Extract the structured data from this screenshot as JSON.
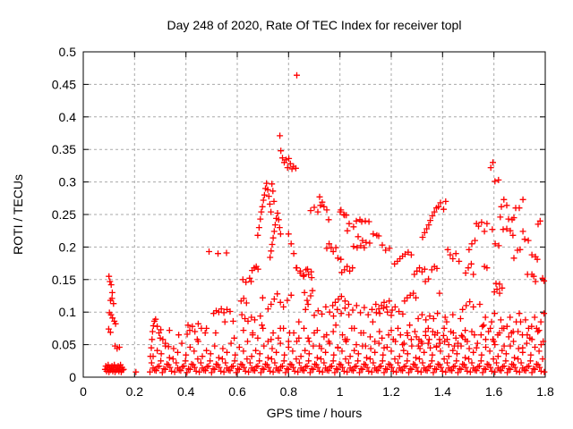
{
  "chart_data": {
    "type": "scatter",
    "title": "Day 248 of 2020, Rate Of TEC Index for receiver topl",
    "xlabel": "GPS time / hours",
    "ylabel": "ROTI / TECUs",
    "xlim": [
      0,
      1.8
    ],
    "ylim": [
      0,
      0.5
    ],
    "grid": true,
    "legend": "none",
    "xtick_values": [
      0,
      0.2,
      0.4,
      0.6,
      0.8,
      1.0,
      1.2,
      1.4,
      1.6,
      1.8
    ],
    "xtick_labels": [
      "0",
      "0.2",
      "0.4",
      "0.6",
      "0.8",
      "1",
      "1.2",
      "1.4",
      "1.6",
      "1.8"
    ],
    "ytick_values": [
      0,
      0.05,
      0.1,
      0.15,
      0.2,
      0.25,
      0.3,
      0.35,
      0.4,
      0.45,
      0.5
    ],
    "ytick_labels": [
      "0",
      "0.05",
      "0.1",
      "0.15",
      "0.2",
      "0.25",
      "0.3",
      "0.35",
      "0.4",
      "0.45",
      "0.5"
    ],
    "colors": {
      "marker": "#ff0000",
      "grid": "#aaaaaa",
      "axis": "#000000",
      "background": "#ffffff"
    },
    "marker": {
      "shape": "plus",
      "size": 7
    },
    "points": [
      [
        0.1,
        0.155
      ],
      [
        0.104,
        0.147
      ],
      [
        0.109,
        0.142
      ],
      [
        0.113,
        0.13
      ],
      [
        0.106,
        0.118
      ],
      [
        0.112,
        0.121
      ],
      [
        0.118,
        0.113
      ],
      [
        0.102,
        0.099
      ],
      [
        0.108,
        0.096
      ],
      [
        0.114,
        0.091
      ],
      [
        0.121,
        0.086
      ],
      [
        0.126,
        0.082
      ],
      [
        0.099,
        0.074
      ],
      [
        0.106,
        0.069
      ],
      [
        0.124,
        0.048
      ],
      [
        0.132,
        0.044
      ],
      [
        0.141,
        0.046
      ],
      [
        0.205,
        0.008
      ],
      [
        0.262,
        0.032
      ],
      [
        0.265,
        0.045
      ],
      [
        0.268,
        0.058
      ],
      [
        0.27,
        0.07
      ],
      [
        0.273,
        0.079
      ],
      [
        0.277,
        0.086
      ],
      [
        0.282,
        0.089
      ],
      [
        0.288,
        0.078
      ],
      [
        0.295,
        0.068
      ],
      [
        0.302,
        0.073
      ],
      [
        0.31,
        0.058
      ],
      [
        0.32,
        0.052
      ],
      [
        0.332,
        0.047
      ],
      [
        0.405,
        0.066
      ],
      [
        0.415,
        0.072
      ],
      [
        0.425,
        0.078
      ],
      [
        0.435,
        0.07
      ],
      [
        0.448,
        0.082
      ],
      [
        0.46,
        0.075
      ],
      [
        0.475,
        0.068
      ],
      [
        0.49,
        0.193
      ],
      [
        0.525,
        0.19
      ],
      [
        0.558,
        0.191
      ],
      [
        0.508,
        0.098
      ],
      [
        0.518,
        0.102
      ],
      [
        0.528,
        0.1
      ],
      [
        0.538,
        0.105
      ],
      [
        0.548,
        0.099
      ],
      [
        0.56,
        0.104
      ],
      [
        0.572,
        0.101
      ],
      [
        0.584,
        0.086
      ],
      [
        0.615,
        0.117
      ],
      [
        0.625,
        0.121
      ],
      [
        0.636,
        0.114
      ],
      [
        0.654,
        0.147
      ],
      [
        0.622,
        0.15
      ],
      [
        0.634,
        0.146
      ],
      [
        0.648,
        0.152
      ],
      [
        0.658,
        0.164
      ],
      [
        0.666,
        0.168
      ],
      [
        0.674,
        0.17
      ],
      [
        0.681,
        0.166
      ],
      [
        0.699,
        0.122
      ],
      [
        0.68,
        0.218
      ],
      [
        0.685,
        0.23
      ],
      [
        0.69,
        0.243
      ],
      [
        0.694,
        0.254
      ],
      [
        0.698,
        0.262
      ],
      [
        0.702,
        0.272
      ],
      [
        0.706,
        0.28
      ],
      [
        0.71,
        0.29
      ],
      [
        0.714,
        0.298
      ],
      [
        0.719,
        0.288
      ],
      [
        0.723,
        0.278
      ],
      [
        0.727,
        0.266
      ],
      [
        0.731,
        0.254
      ],
      [
        0.735,
        0.297
      ],
      [
        0.739,
        0.286
      ],
      [
        0.743,
        0.27
      ],
      [
        0.728,
        0.184
      ],
      [
        0.732,
        0.194
      ],
      [
        0.736,
        0.204
      ],
      [
        0.74,
        0.214
      ],
      [
        0.744,
        0.224
      ],
      [
        0.748,
        0.234
      ],
      [
        0.752,
        0.244
      ],
      [
        0.757,
        0.252
      ],
      [
        0.761,
        0.242
      ],
      [
        0.765,
        0.23
      ],
      [
        0.769,
        0.22
      ],
      [
        0.766,
        0.371
      ],
      [
        0.77,
        0.348
      ],
      [
        0.776,
        0.337
      ],
      [
        0.783,
        0.33
      ],
      [
        0.79,
        0.334
      ],
      [
        0.796,
        0.322
      ],
      [
        0.801,
        0.336
      ],
      [
        0.807,
        0.328
      ],
      [
        0.813,
        0.32
      ],
      [
        0.819,
        0.324
      ],
      [
        0.828,
        0.321
      ],
      [
        0.832,
        0.464
      ],
      [
        0.8,
        0.22
      ],
      [
        0.81,
        0.205
      ],
      [
        0.82,
        0.19
      ],
      [
        0.83,
        0.168
      ],
      [
        0.845,
        0.16
      ],
      [
        0.858,
        0.155
      ],
      [
        0.868,
        0.165
      ],
      [
        0.878,
        0.158
      ],
      [
        0.888,
        0.162
      ],
      [
        0.862,
        0.13
      ],
      [
        0.872,
        0.118
      ],
      [
        0.866,
        0.104
      ],
      [
        0.876,
        0.112
      ],
      [
        0.886,
        0.125
      ],
      [
        0.893,
        0.133
      ],
      [
        0.886,
        0.256
      ],
      [
        0.9,
        0.261
      ],
      [
        0.914,
        0.254
      ],
      [
        0.921,
        0.277
      ],
      [
        0.924,
        0.264
      ],
      [
        0.931,
        0.269
      ],
      [
        0.938,
        0.262
      ],
      [
        0.949,
        0.257
      ],
      [
        0.956,
        0.242
      ],
      [
        0.949,
        0.198
      ],
      [
        0.958,
        0.205
      ],
      [
        0.966,
        0.199
      ],
      [
        0.974,
        0.193
      ],
      [
        0.984,
        0.199
      ],
      [
        0.992,
        0.183
      ],
      [
        1.004,
        0.181
      ],
      [
        1.001,
        0.254
      ],
      [
        1.004,
        0.257
      ],
      [
        1.015,
        0.25
      ],
      [
        1.018,
        0.249
      ],
      [
        1.025,
        0.249
      ],
      [
        1.029,
        0.225
      ],
      [
        1.036,
        0.236
      ],
      [
        1.053,
        0.231
      ],
      [
        1.064,
        0.24
      ],
      [
        1.078,
        0.242
      ],
      [
        1.085,
        0.239
      ],
      [
        1.099,
        0.24
      ],
      [
        1.113,
        0.239
      ],
      [
        1.053,
        0.201
      ],
      [
        1.067,
        0.199
      ],
      [
        1.071,
        0.216
      ],
      [
        1.081,
        0.202
      ],
      [
        1.088,
        0.21
      ],
      [
        1.095,
        0.199
      ],
      [
        1.102,
        0.207
      ],
      [
        1.116,
        0.206
      ],
      [
        1.13,
        0.22
      ],
      [
        1.144,
        0.218
      ],
      [
        1.151,
        0.217
      ],
      [
        1.165,
        0.203
      ],
      [
        1.178,
        0.195
      ],
      [
        1.193,
        0.198
      ],
      [
        1.007,
        0.161
      ],
      [
        1.018,
        0.165
      ],
      [
        1.028,
        0.17
      ],
      [
        1.038,
        0.163
      ],
      [
        1.049,
        0.168
      ],
      [
        0.972,
        0.11
      ],
      [
        0.982,
        0.115
      ],
      [
        0.994,
        0.12
      ],
      [
        1.006,
        0.124
      ],
      [
        1.02,
        0.117
      ],
      [
        1.034,
        0.112
      ],
      [
        1.142,
        0.099
      ],
      [
        1.152,
        0.105
      ],
      [
        1.162,
        0.11
      ],
      [
        1.172,
        0.115
      ],
      [
        1.182,
        0.108
      ],
      [
        1.192,
        0.117
      ],
      [
        1.204,
        0.103
      ],
      [
        1.213,
        0.174
      ],
      [
        1.224,
        0.178
      ],
      [
        1.234,
        0.182
      ],
      [
        1.244,
        0.186
      ],
      [
        1.254,
        0.189
      ],
      [
        1.266,
        0.192
      ],
      [
        1.278,
        0.188
      ],
      [
        1.252,
        0.117
      ],
      [
        1.262,
        0.122
      ],
      [
        1.274,
        0.126
      ],
      [
        1.286,
        0.129
      ],
      [
        1.296,
        0.122
      ],
      [
        1.29,
        0.158
      ],
      [
        1.3,
        0.163
      ],
      [
        1.31,
        0.168
      ],
      [
        1.32,
        0.162
      ],
      [
        1.33,
        0.166
      ],
      [
        1.358,
        0.165
      ],
      [
        1.368,
        0.17
      ],
      [
        1.378,
        0.167
      ],
      [
        1.388,
        0.129
      ],
      [
        1.333,
        0.147
      ],
      [
        1.345,
        0.151
      ],
      [
        1.322,
        0.215
      ],
      [
        1.33,
        0.222
      ],
      [
        1.338,
        0.228
      ],
      [
        1.346,
        0.234
      ],
      [
        1.352,
        0.241
      ],
      [
        1.36,
        0.248
      ],
      [
        1.368,
        0.254
      ],
      [
        1.376,
        0.26
      ],
      [
        1.384,
        0.262
      ],
      [
        1.392,
        0.268
      ],
      [
        1.404,
        0.258
      ],
      [
        1.412,
        0.27
      ],
      [
        1.42,
        0.196
      ],
      [
        1.43,
        0.188
      ],
      [
        1.44,
        0.182
      ],
      [
        1.452,
        0.19
      ],
      [
        1.464,
        0.178
      ],
      [
        1.49,
        0.16
      ],
      [
        1.5,
        0.168
      ],
      [
        1.512,
        0.174
      ],
      [
        1.52,
        0.158
      ],
      [
        1.503,
        0.196
      ],
      [
        1.514,
        0.205
      ],
      [
        1.526,
        0.21
      ],
      [
        1.532,
        0.236
      ],
      [
        1.54,
        0.232
      ],
      [
        1.552,
        0.238
      ],
      [
        1.563,
        0.224
      ],
      [
        1.573,
        0.236
      ],
      [
        1.594,
        0.227
      ],
      [
        1.596,
        0.33
      ],
      [
        1.588,
        0.322
      ],
      [
        1.604,
        0.301
      ],
      [
        1.618,
        0.303
      ],
      [
        1.563,
        0.17
      ],
      [
        1.573,
        0.168
      ],
      [
        1.605,
        0.205
      ],
      [
        1.619,
        0.202
      ],
      [
        1.625,
        0.246
      ],
      [
        1.629,
        0.262
      ],
      [
        1.636,
        0.227
      ],
      [
        1.639,
        0.273
      ],
      [
        1.65,
        0.264
      ],
      [
        1.65,
        0.228
      ],
      [
        1.657,
        0.243
      ],
      [
        1.664,
        0.225
      ],
      [
        1.671,
        0.242
      ],
      [
        1.674,
        0.218
      ],
      [
        1.678,
        0.245
      ],
      [
        1.685,
        0.26
      ],
      [
        1.699,
        0.26
      ],
      [
        1.713,
        0.273
      ],
      [
        1.713,
        0.224
      ],
      [
        1.72,
        0.212
      ],
      [
        1.734,
        0.21
      ],
      [
        1.692,
        0.195
      ],
      [
        1.702,
        0.196
      ],
      [
        1.678,
        0.183
      ],
      [
        1.748,
        0.188
      ],
      [
        1.762,
        0.185
      ],
      [
        1.769,
        0.181
      ],
      [
        1.772,
        0.235
      ],
      [
        1.78,
        0.24
      ],
      [
        1.731,
        0.158
      ],
      [
        1.748,
        0.158
      ],
      [
        1.755,
        0.155
      ],
      [
        1.762,
        0.147
      ],
      [
        1.79,
        0.152
      ],
      [
        1.795,
        0.148
      ],
      [
        1.608,
        0.144
      ],
      [
        1.622,
        0.143
      ],
      [
        1.602,
        0.131
      ],
      [
        1.612,
        0.135
      ],
      [
        1.622,
        0.129
      ],
      [
        1.632,
        0.137
      ],
      [
        0.9,
        0.095
      ],
      [
        0.915,
        0.102
      ],
      [
        0.93,
        0.097
      ],
      [
        0.945,
        0.108
      ],
      [
        0.96,
        0.1
      ],
      [
        0.975,
        0.094
      ],
      [
        0.99,
        0.104
      ],
      [
        1.005,
        0.098
      ],
      [
        1.02,
        0.106
      ],
      [
        1.035,
        0.096
      ],
      [
        1.05,
        0.103
      ],
      [
        1.065,
        0.11
      ],
      [
        1.08,
        0.099
      ],
      [
        1.095,
        0.107
      ],
      [
        1.11,
        0.096
      ],
      [
        1.125,
        0.104
      ],
      [
        1.14,
        0.112
      ],
      [
        1.155,
        0.098
      ],
      [
        1.17,
        0.106
      ],
      [
        1.185,
        0.1
      ],
      [
        1.2,
        0.095
      ],
      [
        1.215,
        0.108
      ],
      [
        1.23,
        0.101
      ],
      [
        1.245,
        0.097
      ],
      [
        1.305,
        0.09
      ],
      [
        1.32,
        0.096
      ],
      [
        1.335,
        0.088
      ],
      [
        1.35,
        0.094
      ],
      [
        1.365,
        0.09
      ],
      [
        1.38,
        0.098
      ],
      [
        1.41,
        0.092
      ],
      [
        1.44,
        0.096
      ],
      [
        1.47,
        0.09
      ],
      [
        1.478,
        0.104
      ],
      [
        1.492,
        0.11
      ],
      [
        1.506,
        0.116
      ],
      [
        1.52,
        0.108
      ],
      [
        1.545,
        0.112
      ],
      [
        0.618,
        0.096
      ],
      [
        0.63,
        0.09
      ],
      [
        0.642,
        0.086
      ],
      [
        0.655,
        0.092
      ],
      [
        0.668,
        0.088
      ],
      [
        0.69,
        0.094
      ],
      [
        0.72,
        0.105
      ],
      [
        0.732,
        0.112
      ],
      [
        0.744,
        0.12
      ],
      [
        0.756,
        0.128
      ],
      [
        0.768,
        0.115
      ],
      [
        0.78,
        0.108
      ],
      [
        0.795,
        0.118
      ],
      [
        0.81,
        0.126
      ],
      [
        0.832,
        0.168
      ],
      [
        0.846,
        0.163
      ],
      [
        0.86,
        0.157
      ],
      [
        0.874,
        0.166
      ],
      [
        0.89,
        0.153
      ]
    ],
    "dense_bands": [
      {
        "x0": 0.26,
        "x1": 1.796,
        "step": 0.012,
        "y_cycle": [
          0.008,
          0.014,
          0.01,
          0.017,
          0.007,
          0.012,
          0.019,
          0.009
        ]
      },
      {
        "x0": 0.266,
        "x1": 1.796,
        "step": 0.012,
        "y_cycle": [
          0.022,
          0.011,
          0.016,
          0.025,
          0.013,
          0.02,
          0.015,
          0.028
        ]
      },
      {
        "x0": 0.272,
        "x1": 1.792,
        "step": 0.016,
        "y_cycle": [
          0.032,
          0.041,
          0.036,
          0.048,
          0.03,
          0.044,
          0.038,
          0.052,
          0.034,
          0.046,
          0.04,
          0.055
        ]
      },
      {
        "x0": 0.3,
        "x1": 1.78,
        "step": 0.036,
        "y_cycle": [
          0.06,
          0.072,
          0.065,
          0.08,
          0.058,
          0.075,
          0.068,
          0.085
        ]
      },
      {
        "x0": 0.92,
        "x1": 1.79,
        "step": 0.018,
        "y_cycle": [
          0.048,
          0.062,
          0.055,
          0.07,
          0.045,
          0.065,
          0.058,
          0.075,
          0.05,
          0.068
        ]
      },
      {
        "x0": 0.085,
        "x1": 0.158,
        "step": 0.003,
        "y_cycle": [
          0.012,
          0.017,
          0.009,
          0.014,
          0.019,
          0.008,
          0.015,
          0.011
        ]
      },
      {
        "x0": 1.555,
        "x1": 1.795,
        "step": 0.012,
        "y_cycle": [
          0.078,
          0.092,
          0.07,
          0.085,
          0.098,
          0.065,
          0.088,
          0.075
        ]
      },
      {
        "x0": 0.64,
        "x1": 0.9,
        "step": 0.02,
        "y_cycle": [
          0.055,
          0.068,
          0.06,
          0.075
        ]
      },
      {
        "x0": 1.25,
        "x1": 1.5,
        "step": 0.014,
        "y_cycle": [
          0.052,
          0.064,
          0.058,
          0.07,
          0.048
        ]
      }
    ]
  }
}
